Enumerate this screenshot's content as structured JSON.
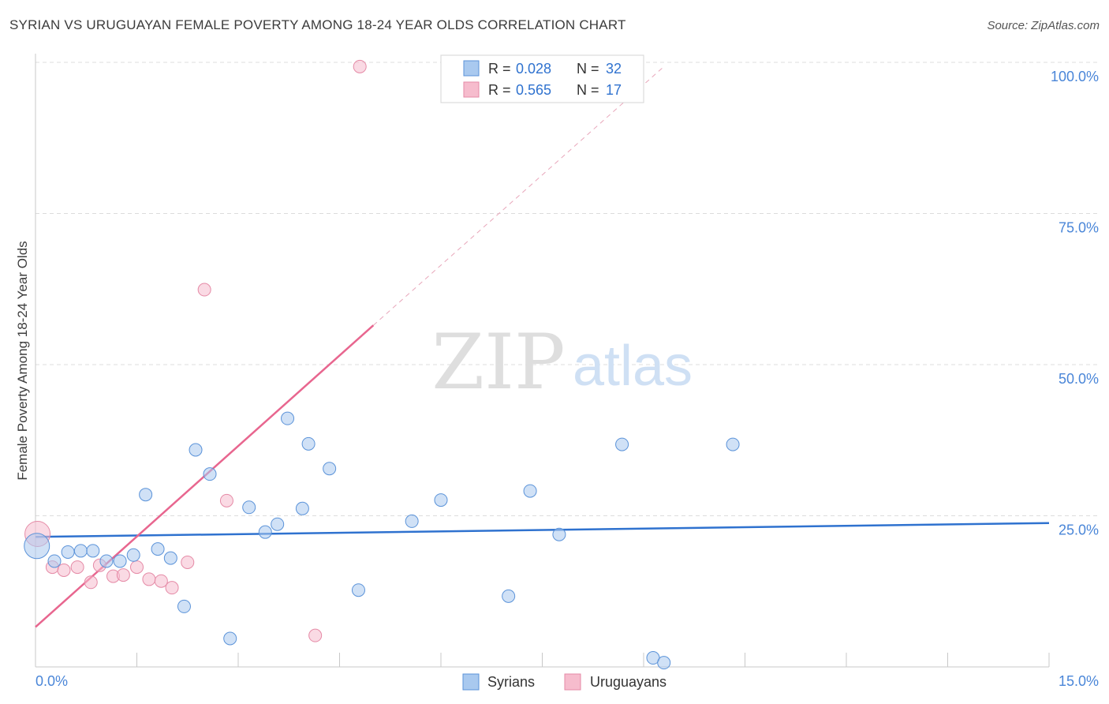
{
  "header": {
    "title": "SYRIAN VS URUGUAYAN FEMALE POVERTY AMONG 18-24 YEAR OLDS CORRELATION CHART",
    "source": "Source: ZipAtlas.com"
  },
  "watermark": {
    "zip": "ZIP",
    "atlas": "atlas"
  },
  "colors": {
    "syrian_fill": "#a9c9ef",
    "syrian_stroke": "#5b93d9",
    "syrian_line": "#2f72cf",
    "uruguayan_fill": "#f6bccd",
    "uruguayan_stroke": "#e58aa6",
    "uruguayan_line": "#e8668f",
    "axis_text": "#4a86d8",
    "grid": "#dcdcdc"
  },
  "legend_top": {
    "rows": [
      {
        "r_label": "R =",
        "r_value": "0.028",
        "n_label": "N =",
        "n_value": "32"
      },
      {
        "r_label": "R =",
        "r_value": "0.565",
        "n_label": "N =",
        "n_value": "17"
      }
    ]
  },
  "chart_data": {
    "type": "scatter",
    "title": "SYRIAN VS URUGUAYAN FEMALE POVERTY AMONG 18-24 YEAR OLDS CORRELATION CHART",
    "xlabel": "",
    "ylabel": "Female Poverty Among 18-24 Year Olds",
    "xlim": [
      0,
      15
    ],
    "ylim": [
      0,
      100
    ],
    "x_tick_labels": [
      "0.0%",
      "15.0%"
    ],
    "y_tick_labels": [
      "25.0%",
      "50.0%",
      "75.0%",
      "100.0%"
    ],
    "y_ticks": [
      25,
      50,
      75,
      100
    ],
    "grid": true,
    "legend": "bottom-center",
    "series": [
      {
        "name": "Syrians",
        "r": 0.028,
        "n": 32,
        "trend": {
          "x": [
            0,
            15
          ],
          "y": [
            21.5,
            23.8
          ],
          "style": "solid"
        },
        "points": [
          {
            "x": 0.02,
            "y": 20.0,
            "big": true
          },
          {
            "x": 0.28,
            "y": 17.5
          },
          {
            "x": 0.48,
            "y": 19.0
          },
          {
            "x": 0.67,
            "y": 19.2
          },
          {
            "x": 0.85,
            "y": 19.2
          },
          {
            "x": 1.05,
            "y": 17.5
          },
          {
            "x": 1.25,
            "y": 17.5
          },
          {
            "x": 1.45,
            "y": 18.5
          },
          {
            "x": 1.63,
            "y": 28.5
          },
          {
            "x": 1.81,
            "y": 19.5
          },
          {
            "x": 2.0,
            "y": 18.0
          },
          {
            "x": 2.2,
            "y": 10.0
          },
          {
            "x": 2.37,
            "y": 35.9
          },
          {
            "x": 2.58,
            "y": 31.9
          },
          {
            "x": 2.88,
            "y": 4.7
          },
          {
            "x": 3.16,
            "y": 26.4
          },
          {
            "x": 3.4,
            "y": 22.3
          },
          {
            "x": 3.58,
            "y": 23.6
          },
          {
            "x": 3.73,
            "y": 41.1
          },
          {
            "x": 3.95,
            "y": 26.2
          },
          {
            "x": 4.04,
            "y": 36.9
          },
          {
            "x": 4.35,
            "y": 32.8
          },
          {
            "x": 4.78,
            "y": 12.7
          },
          {
            "x": 5.57,
            "y": 24.1
          },
          {
            "x": 6.0,
            "y": 27.6
          },
          {
            "x": 7.0,
            "y": 11.7
          },
          {
            "x": 7.32,
            "y": 29.1
          },
          {
            "x": 7.75,
            "y": 21.9
          },
          {
            "x": 8.68,
            "y": 36.8
          },
          {
            "x": 9.14,
            "y": 1.5
          },
          {
            "x": 9.3,
            "y": 0.7
          },
          {
            "x": 10.32,
            "y": 36.8
          }
        ]
      },
      {
        "name": "Uruguayans",
        "r": 0.565,
        "n": 17,
        "trend": {
          "x": [
            0,
            5.0
          ],
          "y": [
            6.6,
            56.5
          ],
          "dashed_to": [
            9.3,
            99.3
          ]
        },
        "points": [
          {
            "x": 0.03,
            "y": 22.0,
            "big": true
          },
          {
            "x": 0.25,
            "y": 16.5
          },
          {
            "x": 0.42,
            "y": 16.0
          },
          {
            "x": 0.62,
            "y": 16.5
          },
          {
            "x": 0.82,
            "y": 14.0
          },
          {
            "x": 0.95,
            "y": 16.8
          },
          {
            "x": 1.15,
            "y": 15.0
          },
          {
            "x": 1.3,
            "y": 15.2
          },
          {
            "x": 1.5,
            "y": 16.5
          },
          {
            "x": 1.68,
            "y": 14.5
          },
          {
            "x": 1.86,
            "y": 14.2
          },
          {
            "x": 2.02,
            "y": 13.1
          },
          {
            "x": 2.25,
            "y": 17.3
          },
          {
            "x": 2.5,
            "y": 62.4
          },
          {
            "x": 2.83,
            "y": 27.5
          },
          {
            "x": 4.14,
            "y": 5.2
          },
          {
            "x": 4.8,
            "y": 99.3
          }
        ]
      }
    ]
  }
}
